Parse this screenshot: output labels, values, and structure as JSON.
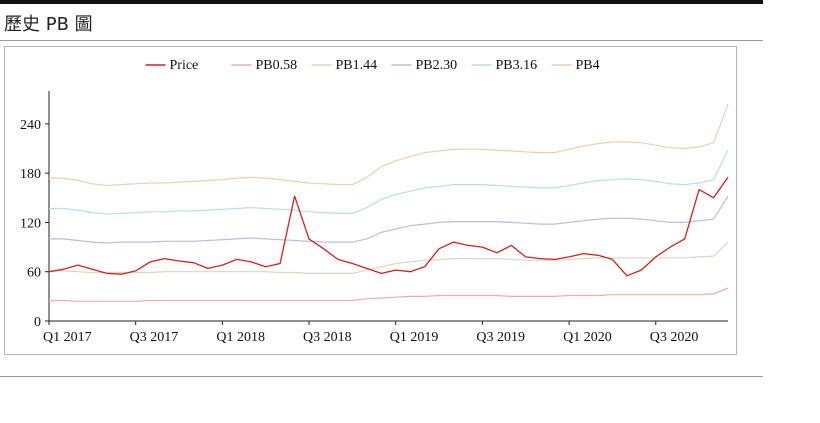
{
  "header": {
    "title": "歷史 PB 圖"
  },
  "chart_data": {
    "type": "line",
    "title": "",
    "xlabel": "",
    "ylabel": "",
    "ylim": [
      0,
      280
    ],
    "yticks": [
      0,
      60,
      120,
      180,
      240
    ],
    "x_ticks": [
      "Q1 2017",
      "Q3 2017",
      "Q1 2018",
      "Q3 2018",
      "Q1 2019",
      "Q3 2019",
      "Q1 2020",
      "Q3 2020"
    ],
    "x": [
      "2017-01",
      "2017-02",
      "2017-03",
      "2017-04",
      "2017-05",
      "2017-06",
      "2017-07",
      "2017-08",
      "2017-09",
      "2017-10",
      "2017-11",
      "2017-12",
      "2018-01",
      "2018-02",
      "2018-03",
      "2018-04",
      "2018-05",
      "2018-06",
      "2018-07",
      "2018-08",
      "2018-09",
      "2018-10",
      "2018-11",
      "2018-12",
      "2019-01",
      "2019-02",
      "2019-03",
      "2019-04",
      "2019-05",
      "2019-06",
      "2019-07",
      "2019-08",
      "2019-09",
      "2019-10",
      "2019-11",
      "2019-12",
      "2020-01",
      "2020-02",
      "2020-03",
      "2020-04",
      "2020-05",
      "2020-06",
      "2020-07",
      "2020-08",
      "2020-09",
      "2020-10",
      "2020-11",
      "2020-12"
    ],
    "legend_position": "top-center",
    "series": [
      {
        "name": "Price",
        "color": "#d42020",
        "values": [
          60,
          63,
          68,
          63,
          58,
          57,
          61,
          72,
          76,
          73,
          71,
          64,
          68,
          75,
          72,
          66,
          70,
          152,
          100,
          88,
          75,
          70,
          64,
          58,
          62,
          60,
          66,
          88,
          96,
          92,
          90,
          83,
          92,
          78,
          76,
          75,
          78,
          82,
          80,
          75,
          55,
          62,
          78,
          90,
          100,
          160,
          150,
          175
        ]
      },
      {
        "name": "PB0.58",
        "color": "#e8b0a8",
        "values": [
          25,
          25,
          24,
          24,
          24,
          24,
          24,
          25,
          25,
          25,
          25,
          25,
          25,
          25,
          25,
          25,
          25,
          25,
          25,
          25,
          25,
          25,
          27,
          28,
          29,
          30,
          30,
          31,
          31,
          31,
          31,
          31,
          30,
          30,
          30,
          30,
          31,
          31,
          31,
          32,
          32,
          32,
          32,
          32,
          32,
          32,
          33,
          40
        ]
      },
      {
        "name": "PB1.44",
        "color": "#d7d9bf",
        "values": [
          61,
          61,
          60,
          59,
          59,
          59,
          59,
          59,
          60,
          60,
          60,
          60,
          60,
          60,
          60,
          60,
          59,
          59,
          58,
          58,
          58,
          58,
          62,
          66,
          70,
          72,
          74,
          75,
          76,
          76,
          76,
          76,
          75,
          74,
          74,
          74,
          75,
          76,
          77,
          77,
          77,
          77,
          77,
          77,
          77,
          78,
          79,
          96
        ]
      },
      {
        "name": "PB2.30",
        "color": "#b9bde0",
        "values": [
          100,
          100,
          98,
          96,
          95,
          96,
          96,
          96,
          97,
          97,
          97,
          98,
          99,
          100,
          101,
          100,
          99,
          98,
          97,
          96,
          96,
          96,
          100,
          108,
          112,
          116,
          118,
          120,
          121,
          121,
          121,
          121,
          120,
          119,
          118,
          118,
          120,
          122,
          124,
          125,
          125,
          124,
          122,
          120,
          120,
          122,
          124,
          152
        ]
      },
      {
        "name": "PB3.16",
        "color": "#b8ddf0",
        "values": [
          137,
          137,
          135,
          132,
          130,
          131,
          132,
          133,
          133,
          134,
          134,
          135,
          136,
          137,
          138,
          137,
          136,
          135,
          133,
          132,
          131,
          131,
          138,
          148,
          154,
          158,
          162,
          164,
          166,
          166,
          166,
          165,
          164,
          163,
          162,
          162,
          165,
          168,
          171,
          172,
          173,
          172,
          170,
          167,
          166,
          168,
          172,
          208
        ]
      },
      {
        "name": "PB4",
        "color": "#f2cdb0",
        "values": [
          174,
          174,
          171,
          167,
          165,
          166,
          167,
          168,
          168,
          169,
          170,
          171,
          172,
          174,
          175,
          174,
          172,
          170,
          168,
          167,
          166,
          166,
          175,
          188,
          195,
          200,
          205,
          207,
          209,
          209,
          209,
          208,
          207,
          206,
          205,
          205,
          209,
          213,
          216,
          218,
          218,
          217,
          214,
          211,
          210,
          212,
          217,
          264
        ]
      }
    ]
  }
}
